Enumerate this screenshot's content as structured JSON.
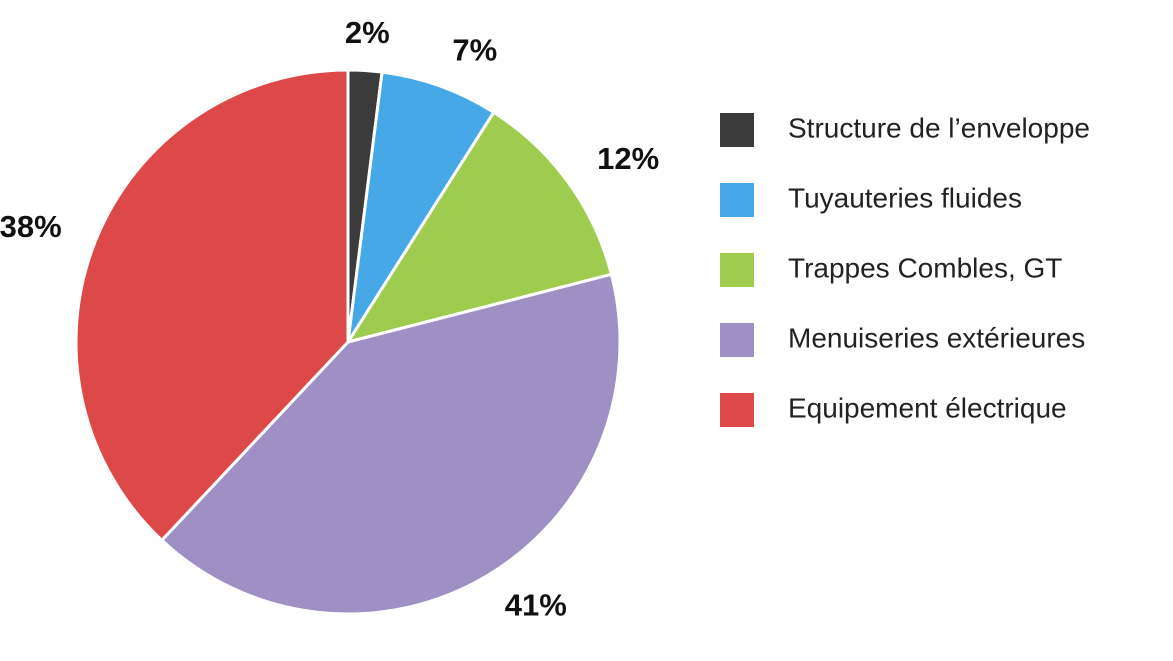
{
  "chart_data": {
    "type": "pie",
    "categories": [
      "Structure de l’enveloppe",
      "Tuyauteries fluides",
      "Trappes Combles, GT",
      "Menuiseries extérieures",
      "Equipement électrique"
    ],
    "values": [
      2,
      7,
      12,
      41,
      38
    ],
    "value_labels": [
      "2%",
      "7%",
      "12%",
      "41%",
      "38%"
    ],
    "colors": [
      "#3b3b3b",
      "#46a8e7",
      "#9dcc4f",
      "#9e90c4",
      "#dd4949"
    ],
    "legend": "right"
  }
}
